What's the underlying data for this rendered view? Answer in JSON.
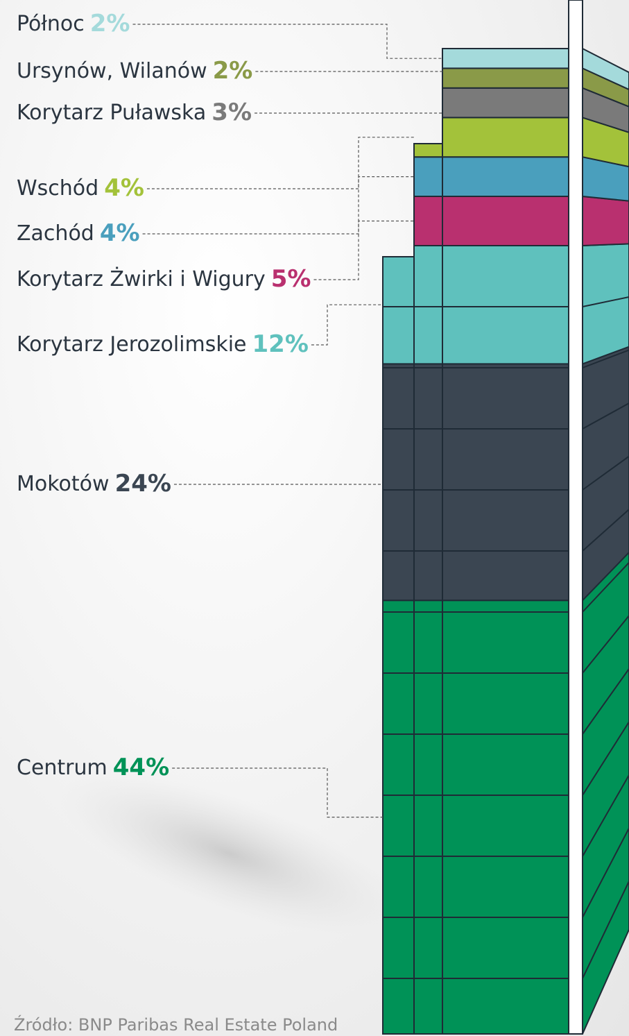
{
  "chart_data": {
    "type": "tower",
    "categories": [
      "Centrum",
      "Mokotów",
      "Korytarz Jerozolimskie",
      "Korytarz Żwirki i Wigury",
      "Zachód",
      "Wschód",
      "Korytarz Puławska",
      "Ursynów, Wilanów",
      "Północ"
    ],
    "values": [
      44,
      24,
      12,
      5,
      4,
      4,
      3,
      2,
      2
    ],
    "value_labels": [
      "44%",
      "24%",
      "12%",
      "5%",
      "4%",
      "4%",
      "3%",
      "2%",
      "2%"
    ],
    "colors": [
      "#009257",
      "#3b4652",
      "#5fc1bd",
      "#b9306f",
      "#4a9fbd",
      "#a3c23a",
      "#7a7a7a",
      "#8a9a48",
      "#a4dadb"
    ],
    "source": "Źródło: BNP Paribas Real Estate Poland"
  }
}
